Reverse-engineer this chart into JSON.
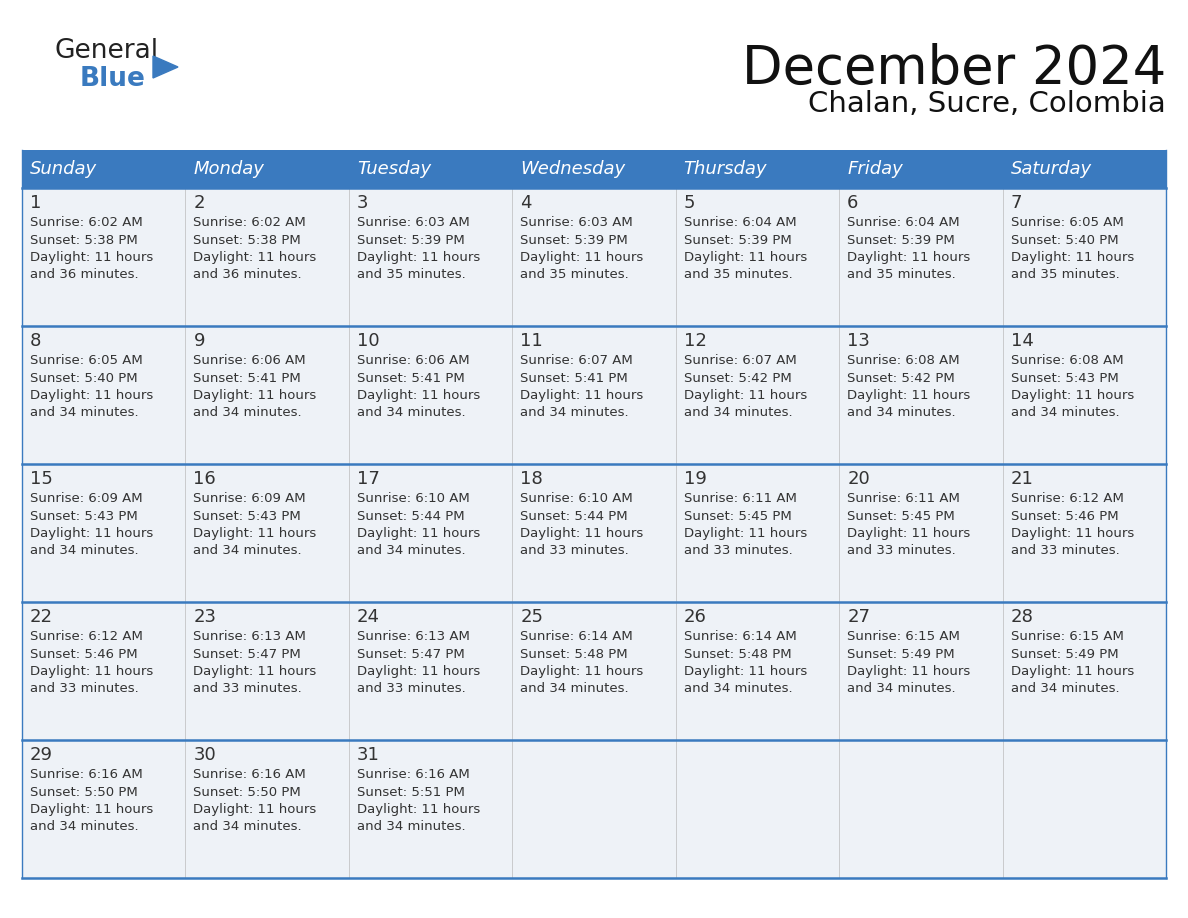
{
  "title": "December 2024",
  "subtitle": "Chalan, Sucre, Colombia",
  "header_color": "#3a7abf",
  "header_text_color": "#ffffff",
  "cell_bg_color": "#eef2f7",
  "border_color": "#3a7abf",
  "sep_color": "#3a7abf",
  "text_color": "#333333",
  "days_of_week": [
    "Sunday",
    "Monday",
    "Tuesday",
    "Wednesday",
    "Thursday",
    "Friday",
    "Saturday"
  ],
  "weeks": [
    [
      {
        "day": 1,
        "sunrise": "6:02 AM",
        "sunset": "5:38 PM",
        "daylight_h": "11 hours",
        "daylight_m": "and 36 minutes."
      },
      {
        "day": 2,
        "sunrise": "6:02 AM",
        "sunset": "5:38 PM",
        "daylight_h": "11 hours",
        "daylight_m": "and 36 minutes."
      },
      {
        "day": 3,
        "sunrise": "6:03 AM",
        "sunset": "5:39 PM",
        "daylight_h": "11 hours",
        "daylight_m": "and 35 minutes."
      },
      {
        "day": 4,
        "sunrise": "6:03 AM",
        "sunset": "5:39 PM",
        "daylight_h": "11 hours",
        "daylight_m": "and 35 minutes."
      },
      {
        "day": 5,
        "sunrise": "6:04 AM",
        "sunset": "5:39 PM",
        "daylight_h": "11 hours",
        "daylight_m": "and 35 minutes."
      },
      {
        "day": 6,
        "sunrise": "6:04 AM",
        "sunset": "5:39 PM",
        "daylight_h": "11 hours",
        "daylight_m": "and 35 minutes."
      },
      {
        "day": 7,
        "sunrise": "6:05 AM",
        "sunset": "5:40 PM",
        "daylight_h": "11 hours",
        "daylight_m": "and 35 minutes."
      }
    ],
    [
      {
        "day": 8,
        "sunrise": "6:05 AM",
        "sunset": "5:40 PM",
        "daylight_h": "11 hours",
        "daylight_m": "and 34 minutes."
      },
      {
        "day": 9,
        "sunrise": "6:06 AM",
        "sunset": "5:41 PM",
        "daylight_h": "11 hours",
        "daylight_m": "and 34 minutes."
      },
      {
        "day": 10,
        "sunrise": "6:06 AM",
        "sunset": "5:41 PM",
        "daylight_h": "11 hours",
        "daylight_m": "and 34 minutes."
      },
      {
        "day": 11,
        "sunrise": "6:07 AM",
        "sunset": "5:41 PM",
        "daylight_h": "11 hours",
        "daylight_m": "and 34 minutes."
      },
      {
        "day": 12,
        "sunrise": "6:07 AM",
        "sunset": "5:42 PM",
        "daylight_h": "11 hours",
        "daylight_m": "and 34 minutes."
      },
      {
        "day": 13,
        "sunrise": "6:08 AM",
        "sunset": "5:42 PM",
        "daylight_h": "11 hours",
        "daylight_m": "and 34 minutes."
      },
      {
        "day": 14,
        "sunrise": "6:08 AM",
        "sunset": "5:43 PM",
        "daylight_h": "11 hours",
        "daylight_m": "and 34 minutes."
      }
    ],
    [
      {
        "day": 15,
        "sunrise": "6:09 AM",
        "sunset": "5:43 PM",
        "daylight_h": "11 hours",
        "daylight_m": "and 34 minutes."
      },
      {
        "day": 16,
        "sunrise": "6:09 AM",
        "sunset": "5:43 PM",
        "daylight_h": "11 hours",
        "daylight_m": "and 34 minutes."
      },
      {
        "day": 17,
        "sunrise": "6:10 AM",
        "sunset": "5:44 PM",
        "daylight_h": "11 hours",
        "daylight_m": "and 34 minutes."
      },
      {
        "day": 18,
        "sunrise": "6:10 AM",
        "sunset": "5:44 PM",
        "daylight_h": "11 hours",
        "daylight_m": "and 33 minutes."
      },
      {
        "day": 19,
        "sunrise": "6:11 AM",
        "sunset": "5:45 PM",
        "daylight_h": "11 hours",
        "daylight_m": "and 33 minutes."
      },
      {
        "day": 20,
        "sunrise": "6:11 AM",
        "sunset": "5:45 PM",
        "daylight_h": "11 hours",
        "daylight_m": "and 33 minutes."
      },
      {
        "day": 21,
        "sunrise": "6:12 AM",
        "sunset": "5:46 PM",
        "daylight_h": "11 hours",
        "daylight_m": "and 33 minutes."
      }
    ],
    [
      {
        "day": 22,
        "sunrise": "6:12 AM",
        "sunset": "5:46 PM",
        "daylight_h": "11 hours",
        "daylight_m": "and 33 minutes."
      },
      {
        "day": 23,
        "sunrise": "6:13 AM",
        "sunset": "5:47 PM",
        "daylight_h": "11 hours",
        "daylight_m": "and 33 minutes."
      },
      {
        "day": 24,
        "sunrise": "6:13 AM",
        "sunset": "5:47 PM",
        "daylight_h": "11 hours",
        "daylight_m": "and 33 minutes."
      },
      {
        "day": 25,
        "sunrise": "6:14 AM",
        "sunset": "5:48 PM",
        "daylight_h": "11 hours",
        "daylight_m": "and 34 minutes."
      },
      {
        "day": 26,
        "sunrise": "6:14 AM",
        "sunset": "5:48 PM",
        "daylight_h": "11 hours",
        "daylight_m": "and 34 minutes."
      },
      {
        "day": 27,
        "sunrise": "6:15 AM",
        "sunset": "5:49 PM",
        "daylight_h": "11 hours",
        "daylight_m": "and 34 minutes."
      },
      {
        "day": 28,
        "sunrise": "6:15 AM",
        "sunset": "5:49 PM",
        "daylight_h": "11 hours",
        "daylight_m": "and 34 minutes."
      }
    ],
    [
      {
        "day": 29,
        "sunrise": "6:16 AM",
        "sunset": "5:50 PM",
        "daylight_h": "11 hours",
        "daylight_m": "and 34 minutes."
      },
      {
        "day": 30,
        "sunrise": "6:16 AM",
        "sunset": "5:50 PM",
        "daylight_h": "11 hours",
        "daylight_m": "and 34 minutes."
      },
      {
        "day": 31,
        "sunrise": "6:16 AM",
        "sunset": "5:51 PM",
        "daylight_h": "11 hours",
        "daylight_m": "and 34 minutes."
      },
      null,
      null,
      null,
      null
    ]
  ],
  "logo_general_color": "#222222",
  "logo_blue_color": "#3a7abf",
  "logo_triangle_color": "#3a7abf"
}
